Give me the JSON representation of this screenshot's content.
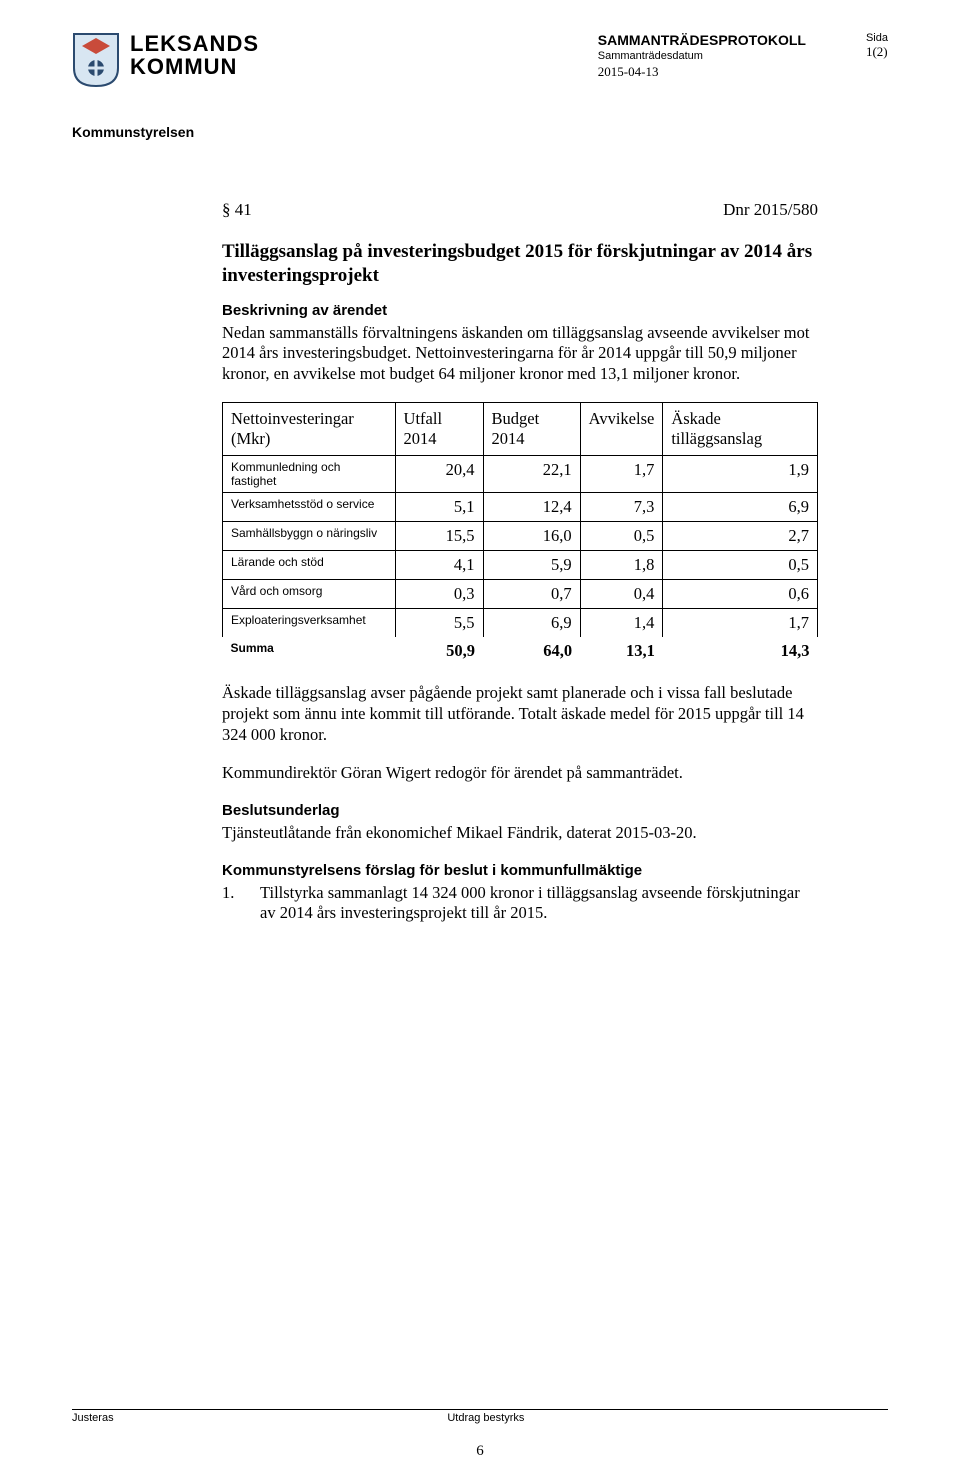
{
  "header": {
    "org_name_line1": "LEKSANDS",
    "org_name_line2": "KOMMUN",
    "doc_type": "SAMMANTRÄDESPROTOKOLL",
    "doc_sub": "Sammanträdesdatum",
    "doc_date": "2015-04-13",
    "sida_label": "Sida",
    "page_of": "1(2)",
    "committee": "Kommunstyrelsen"
  },
  "item": {
    "section": "§ 41",
    "dnr": "Dnr 2015/580",
    "title": "Tilläggsanslag på investeringsbudget 2015 för förskjutningar av 2014 års investeringsprojekt",
    "desc_heading": "Beskrivning av ärendet",
    "desc_para": "Nedan sammanställs förvaltningens äskanden om tilläggsanslag avseende avvikelser mot 2014 års investeringsbudget. Nettoinvesteringarna för år 2014 uppgår till 50,9 miljoner kronor, en avvikelse mot budget 64 miljoner kronor med 13,1 miljoner kronor."
  },
  "table": {
    "type": "table",
    "columns": [
      "Nettoinvesteringar (Mkr)",
      "Utfall 2014",
      "Budget 2014",
      "Avvikelse",
      "Äskade tilläggsanslag"
    ],
    "rows": [
      {
        "label": "Kommunledning och fastighet",
        "values": [
          "20,4",
          "22,1",
          "1,7",
          "1,9"
        ]
      },
      {
        "label": "Verksamhetsstöd o service",
        "values": [
          "5,1",
          "12,4",
          "7,3",
          "6,9"
        ]
      },
      {
        "label": "Samhällsbyggn o näringsliv",
        "values": [
          "15,5",
          "16,0",
          "0,5",
          "2,7"
        ]
      },
      {
        "label": "Lärande och stöd",
        "values": [
          "4,1",
          "5,9",
          "1,8",
          "0,5"
        ]
      },
      {
        "label": "Vård och omsorg",
        "values": [
          "0,3",
          "0,7",
          "0,4",
          "0,6"
        ]
      },
      {
        "label": "Exploateringsverksamhet",
        "values": [
          "5,5",
          "6,9",
          "1,4",
          "1,7"
        ]
      }
    ],
    "sum_label": "Summa",
    "sum_values": [
      "50,9",
      "64,0",
      "13,1",
      "14,3"
    ],
    "border_color": "#000000",
    "header_fontsize_pt": 12,
    "row_label_fontsize_pt": 9,
    "value_fontsize_pt": 12
  },
  "after_table": {
    "para1": "Äskade tilläggsanslag avser pågående projekt samt planerade och i vissa fall beslutade projekt som ännu inte kommit till utförande. Totalt äskade medel för 2015 uppgår till 14 324 000 kronor.",
    "para2": "Kommundirektör Göran Wigert redogör för ärendet på sammanträdet.",
    "underlag_heading": "Beslutsunderlag",
    "underlag_para": "Tjänsteutlåtande från ekonomichef Mikael Fändrik, daterat 2015-03-20.",
    "forslag_heading": "Kommunstyrelsens förslag för beslut i kommunfullmäktige",
    "forslag_item_num": "1.",
    "forslag_item_text": "Tillstyrka sammanlagt 14 324 000 kronor i tilläggsanslag avseende förskjutningar av 2014 års investeringsprojekt till år 2015."
  },
  "footer": {
    "left": "Justeras",
    "right": "Utdrag bestyrks",
    "page_number": "6"
  }
}
